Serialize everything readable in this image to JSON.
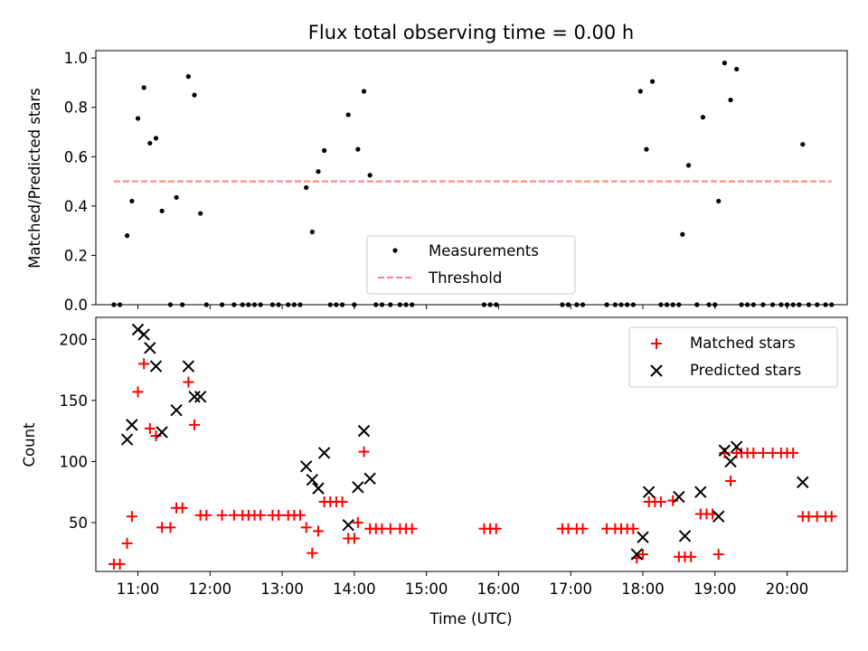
{
  "chart_data": [
    {
      "type": "scatter",
      "title": "Flux total observing time = 0.00 h",
      "ylabel": "Matched/Predicted stars",
      "xlabel": "",
      "xlim": [
        "10:25",
        "20:50"
      ],
      "ylim": [
        0,
        1.03
      ],
      "yticks": [
        0.0,
        0.2,
        0.4,
        0.6,
        0.8,
        1.0
      ],
      "ytick_labels": [
        "0.0",
        "0.2",
        "0.4",
        "0.6",
        "0.8",
        "1.0"
      ],
      "xticks": [
        "11:00",
        "12:00",
        "13:00",
        "14:00",
        "15:00",
        "16:00",
        "17:00",
        "18:00",
        "19:00",
        "20:00"
      ],
      "legend_position": "lower center",
      "series": [
        {
          "name": "Measurements",
          "marker": "dot",
          "color": "#000000",
          "points": [
            [
              "10:40",
              0
            ],
            [
              "10:45",
              0
            ],
            [
              "10:51",
              0.28
            ],
            [
              "10:55",
              0.42
            ],
            [
              "11:00",
              0.755
            ],
            [
              "11:05",
              0.88
            ],
            [
              "11:10",
              0.655
            ],
            [
              "11:15",
              0.675
            ],
            [
              "11:20",
              0.38
            ],
            [
              "11:27",
              0
            ],
            [
              "11:32",
              0.435
            ],
            [
              "11:37",
              0
            ],
            [
              "11:42",
              0.925
            ],
            [
              "11:47",
              0.85
            ],
            [
              "11:52",
              0.37
            ],
            [
              "11:57",
              0
            ],
            [
              "12:10",
              0
            ],
            [
              "12:20",
              0
            ],
            [
              "12:27",
              0
            ],
            [
              "12:32",
              0
            ],
            [
              "12:37",
              0
            ],
            [
              "12:42",
              0
            ],
            [
              "12:52",
              0
            ],
            [
              "12:57",
              0
            ],
            [
              "13:05",
              0
            ],
            [
              "13:10",
              0
            ],
            [
              "13:15",
              0
            ],
            [
              "13:20",
              0.475
            ],
            [
              "13:25",
              0.295
            ],
            [
              "13:30",
              0.54
            ],
            [
              "13:35",
              0.625
            ],
            [
              "13:40",
              0
            ],
            [
              "13:45",
              0
            ],
            [
              "13:50",
              0
            ],
            [
              "13:55",
              0.77
            ],
            [
              "14:00",
              0
            ],
            [
              "14:03",
              0.63
            ],
            [
              "14:08",
              0.865
            ],
            [
              "14:13",
              0.525
            ],
            [
              "14:18",
              0
            ],
            [
              "14:23",
              0
            ],
            [
              "14:30",
              0
            ],
            [
              "14:38",
              0
            ],
            [
              "14:43",
              0
            ],
            [
              "14:48",
              0
            ],
            [
              "15:48",
              0
            ],
            [
              "15:53",
              0
            ],
            [
              "15:58",
              0
            ],
            [
              "16:53",
              0
            ],
            [
              "16:58",
              0
            ],
            [
              "17:05",
              0
            ],
            [
              "17:10",
              0
            ],
            [
              "17:30",
              0
            ],
            [
              "17:37",
              0
            ],
            [
              "17:42",
              0
            ],
            [
              "17:47",
              0
            ],
            [
              "17:52",
              0
            ],
            [
              "17:58",
              0.865
            ],
            [
              "18:03",
              0.63
            ],
            [
              "18:08",
              0.905
            ],
            [
              "18:15",
              0
            ],
            [
              "18:20",
              0
            ],
            [
              "18:25",
              0
            ],
            [
              "18:30",
              0
            ],
            [
              "18:33",
              0.285
            ],
            [
              "18:38",
              0.565
            ],
            [
              "18:45",
              0
            ],
            [
              "18:50",
              0.76
            ],
            [
              "18:55",
              0
            ],
            [
              "19:00",
              0
            ],
            [
              "19:03",
              0.42
            ],
            [
              "19:08",
              0.98
            ],
            [
              "19:13",
              0.83
            ],
            [
              "19:18",
              0.955
            ],
            [
              "19:22",
              0
            ],
            [
              "19:27",
              0
            ],
            [
              "19:32",
              0
            ],
            [
              "19:40",
              0
            ],
            [
              "19:48",
              0
            ],
            [
              "19:55",
              0
            ],
            [
              "20:00",
              0
            ],
            [
              "20:05",
              0
            ],
            [
              "20:10",
              0
            ],
            [
              "20:13",
              0.65
            ],
            [
              "20:18",
              0
            ],
            [
              "20:25",
              0
            ],
            [
              "20:32",
              0
            ],
            [
              "20:37",
              0
            ]
          ]
        },
        {
          "name": "Threshold",
          "marker": "dashed-line",
          "color": "#ff7f7f",
          "points": [
            [
              "10:40",
              0.5
            ],
            [
              "20:37",
              0.5
            ]
          ]
        }
      ]
    },
    {
      "type": "scatter",
      "title": "",
      "xlabel": "Time (UTC)",
      "ylabel": "Count",
      "xlim": [
        "10:25",
        "20:50"
      ],
      "ylim": [
        10,
        218
      ],
      "yticks": [
        50,
        100,
        150,
        200
      ],
      "ytick_labels": [
        "50",
        "100",
        "150",
        "200"
      ],
      "xticks": [
        "11:00",
        "12:00",
        "13:00",
        "14:00",
        "15:00",
        "16:00",
        "17:00",
        "18:00",
        "19:00",
        "20:00"
      ],
      "xtick_labels": [
        "11:00",
        "12:00",
        "13:00",
        "14:00",
        "15:00",
        "16:00",
        "17:00",
        "18:00",
        "19:00",
        "20:00"
      ],
      "legend_position": "upper right",
      "series": [
        {
          "name": "Matched stars",
          "marker": "plus",
          "color": "#ff0000",
          "points": [
            [
              "10:40",
              16
            ],
            [
              "10:45",
              16
            ],
            [
              "10:51",
              33
            ],
            [
              "10:55",
              55
            ],
            [
              "11:00",
              157
            ],
            [
              "11:05",
              180
            ],
            [
              "11:10",
              127
            ],
            [
              "11:15",
              121
            ],
            [
              "11:20",
              46
            ],
            [
              "11:27",
              46
            ],
            [
              "11:32",
              62
            ],
            [
              "11:37",
              62
            ],
            [
              "11:42",
              165
            ],
            [
              "11:47",
              130
            ],
            [
              "11:52",
              56
            ],
            [
              "11:57",
              56
            ],
            [
              "12:10",
              56
            ],
            [
              "12:20",
              56
            ],
            [
              "12:27",
              56
            ],
            [
              "12:32",
              56
            ],
            [
              "12:37",
              56
            ],
            [
              "12:42",
              56
            ],
            [
              "12:52",
              56
            ],
            [
              "12:57",
              56
            ],
            [
              "13:05",
              56
            ],
            [
              "13:10",
              56
            ],
            [
              "13:15",
              56
            ],
            [
              "13:20",
              46
            ],
            [
              "13:25",
              25
            ],
            [
              "13:30",
              43
            ],
            [
              "13:35",
              67
            ],
            [
              "13:40",
              67
            ],
            [
              "13:45",
              67
            ],
            [
              "13:50",
              67
            ],
            [
              "13:55",
              37
            ],
            [
              "14:00",
              37
            ],
            [
              "14:03",
              50
            ],
            [
              "14:08",
              108
            ],
            [
              "14:13",
              45
            ],
            [
              "14:18",
              45
            ],
            [
              "14:23",
              45
            ],
            [
              "14:30",
              45
            ],
            [
              "14:38",
              45
            ],
            [
              "14:43",
              45
            ],
            [
              "14:48",
              45
            ],
            [
              "15:48",
              45
            ],
            [
              "15:53",
              45
            ],
            [
              "15:58",
              45
            ],
            [
              "16:53",
              45
            ],
            [
              "16:58",
              45
            ],
            [
              "17:05",
              45
            ],
            [
              "17:10",
              45
            ],
            [
              "17:30",
              45
            ],
            [
              "17:37",
              45
            ],
            [
              "17:42",
              45
            ],
            [
              "17:47",
              45
            ],
            [
              "17:52",
              45
            ],
            [
              "17:55",
              21
            ],
            [
              "18:00",
              24
            ],
            [
              "18:05",
              67
            ],
            [
              "18:10",
              67
            ],
            [
              "18:15",
              67
            ],
            [
              "18:25",
              68
            ],
            [
              "18:30",
              22
            ],
            [
              "18:35",
              22
            ],
            [
              "18:40",
              22
            ],
            [
              "18:48",
              57
            ],
            [
              "18:53",
              57
            ],
            [
              "18:58",
              57
            ],
            [
              "19:03",
              24
            ],
            [
              "19:08",
              107
            ],
            [
              "19:13",
              84
            ],
            [
              "19:18",
              107
            ],
            [
              "19:22",
              107
            ],
            [
              "19:27",
              107
            ],
            [
              "19:32",
              107
            ],
            [
              "19:40",
              107
            ],
            [
              "19:48",
              107
            ],
            [
              "19:55",
              107
            ],
            [
              "20:00",
              107
            ],
            [
              "20:05",
              107
            ],
            [
              "20:13",
              55
            ],
            [
              "20:18",
              55
            ],
            [
              "20:25",
              55
            ],
            [
              "20:32",
              55
            ],
            [
              "20:37",
              55
            ]
          ]
        },
        {
          "name": "Predicted stars",
          "marker": "x",
          "color": "#000000",
          "points": [
            [
              "10:51",
              118
            ],
            [
              "10:55",
              130
            ],
            [
              "11:00",
              208
            ],
            [
              "11:05",
              204
            ],
            [
              "11:10",
              193
            ],
            [
              "11:15",
              178
            ],
            [
              "11:20",
              124
            ],
            [
              "11:32",
              142
            ],
            [
              "11:42",
              178
            ],
            [
              "11:47",
              153
            ],
            [
              "11:52",
              153
            ],
            [
              "13:20",
              96
            ],
            [
              "13:25",
              85
            ],
            [
              "13:30",
              78
            ],
            [
              "13:35",
              107
            ],
            [
              "13:55",
              48
            ],
            [
              "14:03",
              79
            ],
            [
              "14:08",
              125
            ],
            [
              "14:13",
              86
            ],
            [
              "17:55",
              24
            ],
            [
              "18:00",
              38
            ],
            [
              "18:05",
              75
            ],
            [
              "18:30",
              71
            ],
            [
              "18:35",
              39
            ],
            [
              "18:48",
              75
            ],
            [
              "19:03",
              55
            ],
            [
              "19:08",
              109
            ],
            [
              "19:13",
              100
            ],
            [
              "19:18",
              112
            ],
            [
              "20:13",
              83
            ]
          ]
        }
      ]
    }
  ]
}
